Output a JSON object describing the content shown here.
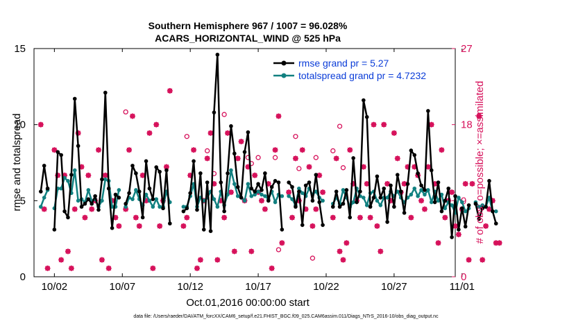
{
  "chart_data": {
    "type": "line",
    "title_line1": "Southern Hemisphere 967 / 1007 = 96.028%",
    "title_line2": "ACARS_HORIZONTAL_WIND @ 525 hPa",
    "xlabel": "Oct.01,2016 00:00:00 start",
    "ylabel": "rmse and totalspread",
    "ylabel_right": "# of obs: o=possible; ×=assimilated",
    "footer": "data file: /Users/raeder/DAI/ATM_forcXX/CAM6_setup/f.e21.FHIST_BGC.f09_025.CAM6assim.011/Diags_NTrS_2016-10/obs_diag_output.nc",
    "xlim": [
      0.5,
      31.5
    ],
    "ylim": [
      0,
      15
    ],
    "ylim_right": [
      0,
      27
    ],
    "x_ticks": [
      2,
      7,
      12,
      17,
      22,
      27,
      32
    ],
    "x_tick_labels": [
      "10/02",
      "10/07",
      "10/12",
      "10/17",
      "10/22",
      "10/27",
      "11/01"
    ],
    "y_ticks": [
      0,
      5,
      10,
      15
    ],
    "y_tick_labels": [
      "0",
      "5",
      "10",
      "15"
    ],
    "y_right_ticks": [
      0,
      9,
      18,
      27
    ],
    "y_right_tick_labels": [
      "0",
      "9",
      "18",
      "27"
    ],
    "colors": {
      "rmse": "#000000",
      "spread": "#118080",
      "obs": "#d6105a",
      "legend_text": "#0a3cd8"
    },
    "series": [
      {
        "name": "rmse grand pr = 5.27",
        "values": [
          5.6,
          7.3,
          5.8,
          null,
          3.1,
          8.2,
          8.0,
          4.3,
          3.9,
          6.7,
          11.7,
          8.6,
          4.6,
          4.8,
          5.1,
          4.8,
          5.3,
          4.4,
          6.4,
          12.1,
          5.8,
          3.2,
          5.4,
          5.2,
          null,
          4.8,
          5.5,
          7.3,
          6.8,
          5.6,
          3.9,
          7.6,
          5.8,
          5.1,
          7.2,
          6.9,
          4.5,
          7.0,
          3.5,
          null,
          null,
          null,
          4.3,
          4.5,
          5.5,
          7.6,
          4.4,
          6.8,
          3.1,
          6.2,
          3.0,
          10.8,
          14.6,
          6.2,
          4.3,
          6.8,
          9.9,
          8.1,
          5.9,
          5.2,
          8.2,
          9.5,
          5.8,
          5.6,
          6.1,
          5.7,
          6.8,
          5.0,
          5.9,
          6.3,
          6.2,
          3.1,
          null,
          6.2,
          5.9,
          4.6,
          5.6,
          3.4,
          6.0,
          6.2,
          5.0,
          6.7,
          4.9,
          3.4,
          null,
          null,
          4.6,
          5.6,
          4.6,
          4.8,
          5.7,
          3.9,
          7.8,
          4.9,
          5.6,
          11.6,
          10.5,
          4.6,
          5.2,
          6.6,
          5.2,
          5.8,
          3.6,
          6.0,
          4.6,
          6.7,
          5.6,
          4.2,
          6.1,
          8.3,
          8.0,
          6.8,
          6.0,
          5.7,
          10.9,
          7.0,
          4.9,
          6.2,
          4.3,
          5.0,
          5.8,
          2.6,
          5.3,
          3.1,
          4.5,
          3.3,
          4.7,
          null,
          4.8,
          3.8,
          4.5,
          4.6,
          6.3,
          4.3,
          3.5
        ],
        "color": "#000000"
      },
      {
        "name": "totalspread grand pr = 4.7232",
        "values": [
          4.6,
          5.2,
          5.7,
          null,
          4.5,
          5.8,
          5.8,
          6.5,
          6.3,
          5.5,
          7.0,
          5.0,
          5.1,
          4.9,
          5.7,
          5.0,
          5.1,
          4.6,
          5.0,
          6.4,
          6.3,
          4.6,
          4.6,
          5.7,
          null,
          4.6,
          5.2,
          5.1,
          5.7,
          5.1,
          4.7,
          5.4,
          5.0,
          4.6,
          5.1,
          4.6,
          4.6,
          5.6,
          4.9,
          null,
          null,
          null,
          4.6,
          4.6,
          5.3,
          6.1,
          4.6,
          5.2,
          5.0,
          5.2,
          5.6,
          5.1,
          4.6,
          5.6,
          4.7,
          5.4,
          7.0,
          6.1,
          5.3,
          5.2,
          5.0,
          6.1,
          5.3,
          5.4,
          5.6,
          5.4,
          5.3,
          5.1,
          5.6,
          4.9,
          5.4,
          5.3,
          null,
          5.3,
          5.1,
          4.7,
          5.8,
          5.5,
          5.3,
          5.8,
          5.4,
          5.6,
          5.2,
          5.0,
          null,
          null,
          4.8,
          5.2,
          4.8,
          5.7,
          5.2,
          4.6,
          4.9,
          5.8,
          5.3,
          5.2,
          4.7,
          5.5,
          5.6,
          5.0,
          4.7,
          5.2,
          5.2,
          5.6,
          5.3,
          5.6,
          5.2,
          4.9,
          5.2,
          5.4,
          5.8,
          5.3,
          5.7,
          5.4,
          5.7,
          4.9,
          5.6,
          5.0,
          5.4,
          4.5,
          4.9,
          4.7,
          4.2,
          5.2,
          4.9,
          4.3,
          4.5,
          null,
          4.9,
          4.6,
          4.7,
          4.6,
          5.2,
          4.3,
          4.3
        ],
        "color": "#118080"
      },
      {
        "name": "obs possible",
        "marker": "o",
        "values": [
          18,
          8,
          1,
          null,
          15,
          12,
          2,
          12,
          3,
          1,
          8,
          17,
          13,
          7,
          12,
          8,
          9,
          15,
          2,
          12,
          1,
          9,
          7,
          6,
          null,
          8,
          15,
          19,
          7,
          6,
          12,
          9,
          17,
          1,
          18,
          6,
          9,
          13,
          22,
          null,
          null,
          null,
          6,
          7,
          12,
          15,
          1,
          2,
          9,
          14,
          17,
          11,
          2,
          9,
          7,
          17,
          10,
          3,
          14,
          16,
          9,
          13,
          3,
          12,
          10,
          9,
          8,
          11,
          1,
          15,
          19,
          4,
          null,
          10,
          7,
          14,
          9,
          15,
          8,
          13,
          6,
          8,
          12,
          10,
          null,
          null,
          7,
          14,
          3,
          2,
          4,
          15,
          11,
          9,
          7,
          13,
          11,
          7,
          18,
          6,
          3,
          18,
          11,
          9,
          17,
          14,
          10,
          11,
          13,
          7,
          13,
          12,
          9,
          8,
          13,
          18,
          11,
          4,
          15,
          7,
          9,
          10,
          6,
          5,
          8,
          11,
          2,
          11,
          null,
          19,
          2,
          6,
          8,
          9,
          4,
          4
        ],
        "color": "#d6105a"
      },
      {
        "name": "obs assimilated",
        "marker": "x",
        "values": [
          18,
          8,
          1,
          null,
          15,
          12,
          2,
          12,
          3,
          1,
          8,
          17,
          13,
          7,
          12,
          8,
          9,
          15,
          2,
          12,
          1,
          9,
          7,
          6,
          null,
          8,
          15,
          19,
          7,
          6,
          12,
          9,
          17,
          1,
          18,
          6,
          9,
          13,
          22,
          null,
          null,
          null,
          6,
          7,
          12,
          15,
          1,
          2,
          9,
          14,
          17,
          11,
          2,
          9,
          7,
          17,
          10,
          3,
          14,
          16,
          9,
          13,
          3,
          12,
          10,
          9,
          8,
          11,
          1,
          15,
          19,
          4,
          null,
          10,
          7,
          14,
          9,
          15,
          8,
          13,
          6,
          8,
          12,
          10,
          null,
          null,
          7,
          14,
          3,
          2,
          4,
          15,
          11,
          9,
          7,
          13,
          11,
          7,
          18,
          6,
          3,
          18,
          11,
          9,
          17,
          14,
          10,
          11,
          13,
          7,
          13,
          12,
          9,
          8,
          13,
          18,
          11,
          4,
          15,
          7,
          9,
          10,
          6,
          5,
          8,
          11,
          2,
          11,
          null,
          19,
          2,
          6,
          8,
          9,
          4,
          4
        ],
        "color": "#d6105a"
      }
    ],
    "possible_only": [
      {
        "x": 7.25,
        "y": 19.5
      },
      {
        "x": 11.75,
        "y": 16.6
      },
      {
        "x": 13.25,
        "y": 14.9
      },
      {
        "x": 13.75,
        "y": 12.2
      },
      {
        "x": 14.5,
        "y": 19.2
      },
      {
        "x": 16.25,
        "y": 14.1
      },
      {
        "x": 16.5,
        "y": 13.4
      },
      {
        "x": 17.0,
        "y": 14.1
      },
      {
        "x": 18.25,
        "y": 14.1
      },
      {
        "x": 18.5,
        "y": 3.2
      },
      {
        "x": 19.75,
        "y": 16.6
      },
      {
        "x": 20.0,
        "y": 12.8
      },
      {
        "x": 21.0,
        "y": 2.2
      },
      {
        "x": 21.25,
        "y": 14.1
      },
      {
        "x": 22.5,
        "y": 14.9
      },
      {
        "x": 23.0,
        "y": 17.8
      },
      {
        "x": 23.25,
        "y": 12.9
      }
    ]
  },
  "legend": {
    "rmse_label": "rmse grand pr = 5.27",
    "spread_label": "totalspread grand pr = 4.7232"
  }
}
